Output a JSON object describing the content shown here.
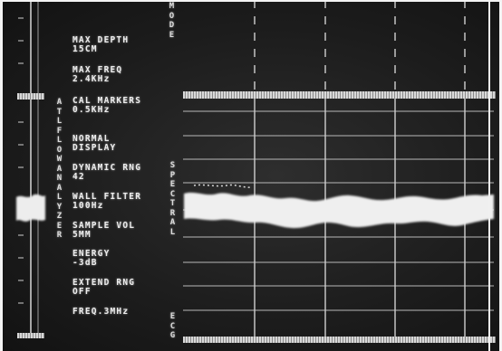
{
  "side_label": "ATL FLOW ANALYZER",
  "mode_label": "MODE",
  "spectral_label": "SPECTRAL",
  "ecg_label": "ECG",
  "parameters": [
    {
      "name": "MAX DEPTH",
      "value": "15CM"
    },
    {
      "name": "MAX FREQ",
      "value": "2.4KHz"
    },
    {
      "name": "CAL MARKERS",
      "value": "0.5KHz"
    },
    {
      "name": "NORMAL",
      "value": "DISPLAY"
    },
    {
      "name": "DYNAMIC RNG",
      "value": "42"
    },
    {
      "name": "WALL FILTER",
      "value": "100Hz"
    },
    {
      "name": "SAMPLE VOL",
      "value": "5MM"
    },
    {
      "name": "ENERGY",
      "value": "-3dB"
    },
    {
      "name": "EXTEND RNG",
      "value": "OFF"
    },
    {
      "name": "FREQ.3MHz",
      "value": ""
    }
  ],
  "colors": {
    "background": "#1c1c1c",
    "trace": "#f2f2f2",
    "gridline": "#bdbdbd"
  }
}
